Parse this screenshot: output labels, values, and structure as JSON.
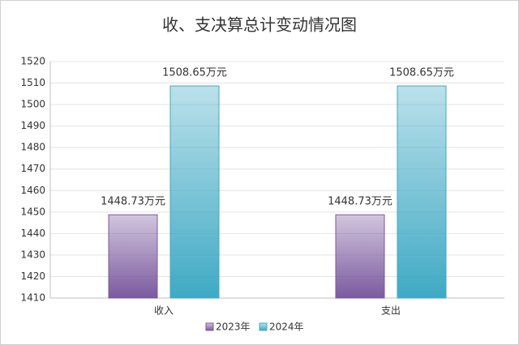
{
  "chart_data": {
    "type": "bar",
    "title": "收、支决算总计变动情况图",
    "categories": [
      "收入",
      "支出"
    ],
    "series": [
      {
        "name": "2023年",
        "color": "#7b5a9e",
        "values": [
          1448.73,
          1448.73
        ],
        "value_labels": [
          "1448.73万元",
          "1448.73万元"
        ]
      },
      {
        "name": "2024年",
        "color": "#3fa9c4",
        "values": [
          1508.65,
          1508.65
        ],
        "value_labels": [
          "1508.65万元",
          "1508.65万元"
        ]
      }
    ],
    "ylim": [
      1410,
      1520
    ],
    "yticks": [
      1410,
      1420,
      1430,
      1440,
      1450,
      1460,
      1470,
      1480,
      1490,
      1500,
      1510,
      1520
    ],
    "grid": true,
    "legend": "bottom"
  }
}
